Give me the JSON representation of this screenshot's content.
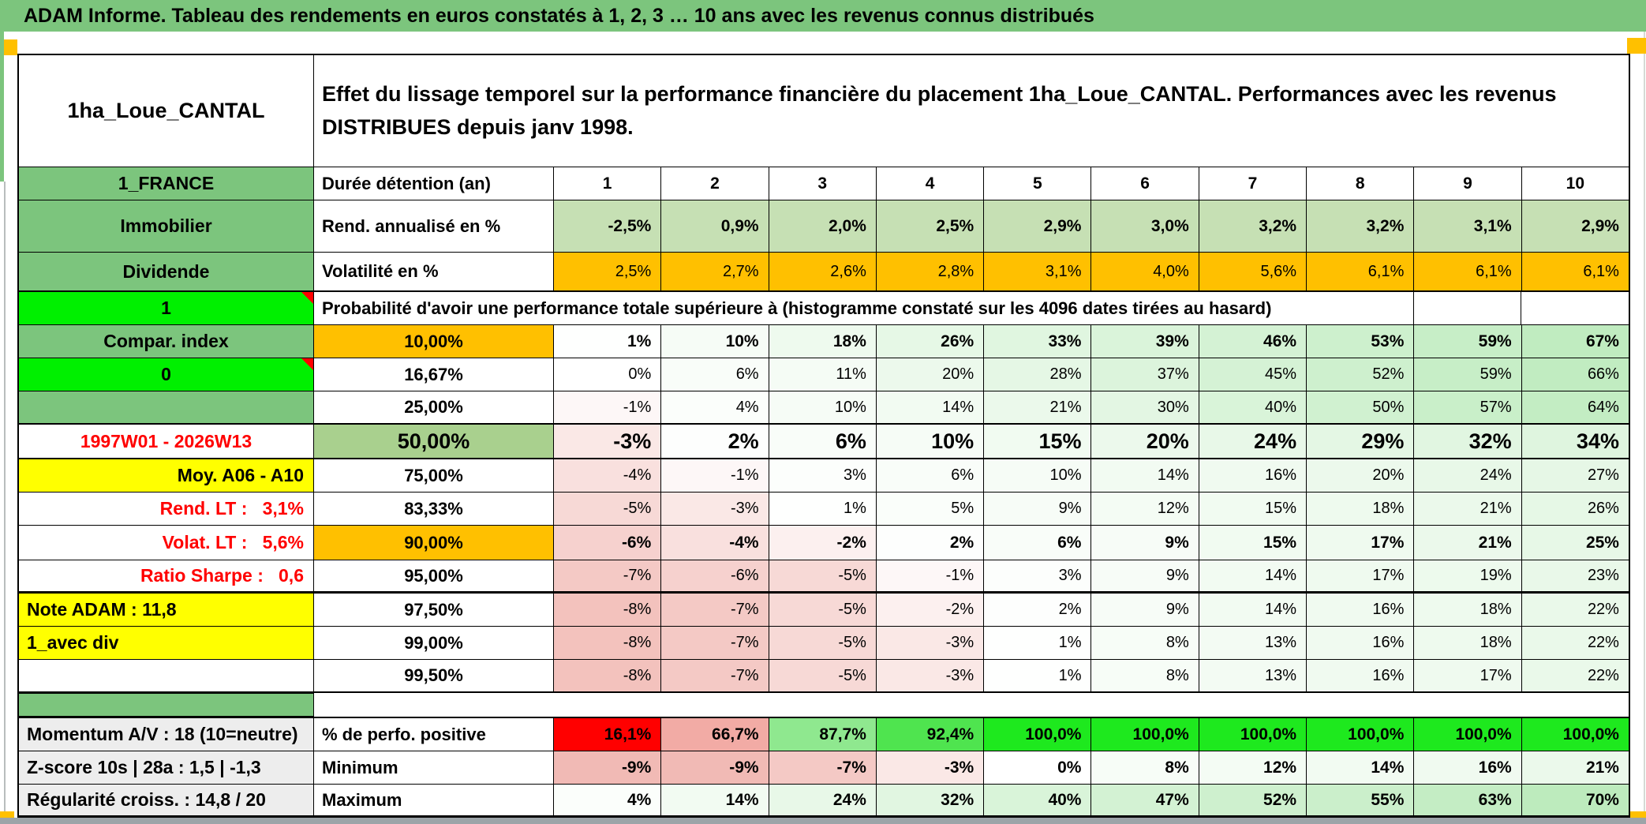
{
  "title": "ADAM Informe. Tableau des rendements en euros constatés à 1, 2, 3 … 10 ans avec les revenus connus distribués",
  "header": {
    "asset_name": "1ha_Loue_CANTAL",
    "description": "Effet du lissage temporel sur la performance financière du placement 1ha_Loue_CANTAL. Performances avec les revenus DISTRIBUES depuis janv 1998."
  },
  "colors": {
    "green": "#7CC57D",
    "midGreen": "#A9D08E",
    "lightGreen": "#C6E0B4",
    "brightGreen": "#00F000",
    "orange": "#FFC000",
    "yellow": "#FFFF00",
    "gray": "#EDEDED",
    "red": "#FF0000",
    "white": "#FFFFFF",
    "scaleNegEnd": "#F1BAB5",
    "scalePosEnd": "#BDEBBD",
    "perfoCellColors": [
      "#FF0000",
      "#F2ABA5",
      "#8FE88F",
      "#4FE44F",
      "#1EE91E",
      "#1EE91E",
      "#1EE91E",
      "#1EE91E",
      "#1EE91E",
      "#1EE91E"
    ],
    "bottomBar": "#9CA4A8",
    "titleBand": "#7CC57D"
  },
  "table": {
    "columns": [
      "1",
      "2",
      "3",
      "4",
      "5",
      "6",
      "7",
      "8",
      "9",
      "10"
    ],
    "prob_header_text": "Probabilité d'avoir une performance totale supérieure à (histogramme constaté sur les 4096 dates tirées au hasard)",
    "rows": [
      {
        "id": "duree",
        "a": {
          "text": "1_FRANCE",
          "bg": "green",
          "align": "c"
        },
        "b": {
          "text": "Durée détention (an)",
          "bg": "white",
          "align": "l"
        },
        "cells": [
          "1",
          "2",
          "3",
          "4",
          "5",
          "6",
          "7",
          "8",
          "9",
          "10"
        ],
        "mode": "plain",
        "cellAlign": "c",
        "cellBold": true
      },
      {
        "id": "rend",
        "a": {
          "text": "Immobilier",
          "bg": "green",
          "align": "c"
        },
        "b": {
          "text": "Rend. annualisé en %",
          "bg": "white",
          "align": "l"
        },
        "cells": [
          "-2,5%",
          "0,9%",
          "2,0%",
          "2,5%",
          "2,9%",
          "3,0%",
          "3,2%",
          "3,2%",
          "3,1%",
          "2,9%"
        ],
        "mode": "lightgreen",
        "cellAlign": "r",
        "cellBold": true
      },
      {
        "id": "vol",
        "a": {
          "text": "Dividende",
          "bg": "green",
          "align": "c"
        },
        "b": {
          "text": "Volatilité en %",
          "bg": "white",
          "align": "l"
        },
        "cells": [
          "2,5%",
          "2,7%",
          "2,6%",
          "2,8%",
          "3,1%",
          "4,0%",
          "5,6%",
          "6,1%",
          "6,1%",
          "6,1%"
        ],
        "mode": "orange",
        "cellAlign": "r",
        "cellBold": false
      },
      {
        "id": "probhdr",
        "type": "merged",
        "a": {
          "text": "1",
          "bg": "brightGreen",
          "align": "c",
          "marker": true
        },
        "trailing": 2
      },
      {
        "id": "p10",
        "a": {
          "text": "Compar. index",
          "bg": "green",
          "align": "c"
        },
        "b": {
          "text": "10,00%",
          "bg": "orange",
          "align": "c"
        },
        "cells": [
          "1%",
          "10%",
          "18%",
          "26%",
          "33%",
          "39%",
          "46%",
          "53%",
          "59%",
          "67%"
        ],
        "mode": "scale",
        "cellAlign": "r",
        "cellBold": true
      },
      {
        "id": "p1667",
        "a": {
          "text": "0",
          "bg": "brightGreen",
          "align": "c",
          "marker": true
        },
        "b": {
          "text": "16,67%",
          "bg": "white",
          "align": "c"
        },
        "cells": [
          "0%",
          "6%",
          "11%",
          "20%",
          "28%",
          "37%",
          "45%",
          "52%",
          "59%",
          "66%"
        ],
        "mode": "scale",
        "cellAlign": "r",
        "cellBold": false
      },
      {
        "id": "p25",
        "a": {
          "text": "",
          "bg": "green",
          "align": "c"
        },
        "b": {
          "text": "25,00%",
          "bg": "white",
          "align": "c"
        },
        "cells": [
          "-1%",
          "4%",
          "10%",
          "14%",
          "21%",
          "30%",
          "40%",
          "50%",
          "57%",
          "64%"
        ],
        "mode": "scale",
        "cellAlign": "r",
        "cellBold": false
      },
      {
        "id": "p50",
        "a": {
          "text": "1997W01 - 2026W13",
          "bg": "white",
          "fg": "red",
          "align": "c"
        },
        "b": {
          "text": "50,00%",
          "bg": "midGreen",
          "align": "c",
          "big": true
        },
        "cells": [
          "-3%",
          "2%",
          "6%",
          "10%",
          "15%",
          "20%",
          "24%",
          "29%",
          "32%",
          "34%"
        ],
        "mode": "scale",
        "cellAlign": "r",
        "cellBold": true,
        "big": true
      },
      {
        "id": "p75",
        "a": {
          "text": "Moy. A06 - A10",
          "bg": "yellow",
          "align": "r"
        },
        "b": {
          "text": "75,00%",
          "bg": "white",
          "align": "c"
        },
        "cells": [
          "-4%",
          "-1%",
          "3%",
          "6%",
          "10%",
          "14%",
          "16%",
          "20%",
          "24%",
          "27%"
        ],
        "mode": "scale",
        "cellAlign": "r",
        "cellBold": false
      },
      {
        "id": "p8333",
        "a": {
          "text": "Rend. LT :   3,1%",
          "bg": "white",
          "fg": "red",
          "align": "r"
        },
        "b": {
          "text": "83,33%",
          "bg": "white",
          "align": "c"
        },
        "cells": [
          "-5%",
          "-3%",
          "1%",
          "5%",
          "9%",
          "12%",
          "15%",
          "18%",
          "21%",
          "26%"
        ],
        "mode": "scale",
        "cellAlign": "r",
        "cellBold": false
      },
      {
        "id": "p90",
        "a": {
          "text": "Volat. LT :   5,6%",
          "bg": "white",
          "fg": "red",
          "align": "r"
        },
        "b": {
          "text": "90,00%",
          "bg": "orange",
          "align": "c"
        },
        "cells": [
          "-6%",
          "-4%",
          "-2%",
          "2%",
          "6%",
          "9%",
          "15%",
          "17%",
          "21%",
          "25%"
        ],
        "mode": "scale",
        "cellAlign": "r",
        "cellBold": true
      },
      {
        "id": "p95",
        "a": {
          "text": "Ratio Sharpe :   0,6",
          "bg": "white",
          "fg": "red",
          "align": "r"
        },
        "b": {
          "text": "95,00%",
          "bg": "white",
          "align": "c"
        },
        "cells": [
          "-7%",
          "-6%",
          "-5%",
          "-1%",
          "3%",
          "9%",
          "14%",
          "17%",
          "19%",
          "23%"
        ],
        "mode": "scale",
        "cellAlign": "r",
        "cellBold": false
      },
      {
        "id": "p975",
        "a": {
          "text": "Note ADAM : 11,8",
          "bg": "yellow",
          "align": "l"
        },
        "b": {
          "text": "97,50%",
          "bg": "white",
          "align": "c"
        },
        "cells": [
          "-8%",
          "-7%",
          "-5%",
          "-2%",
          "2%",
          "9%",
          "14%",
          "16%",
          "18%",
          "22%"
        ],
        "mode": "scale",
        "cellAlign": "r",
        "cellBold": false
      },
      {
        "id": "p99",
        "a": {
          "text": "1_avec div",
          "bg": "yellow",
          "align": "l"
        },
        "b": {
          "text": "99,00%",
          "bg": "white",
          "align": "c"
        },
        "cells": [
          "-8%",
          "-7%",
          "-5%",
          "-3%",
          "1%",
          "8%",
          "13%",
          "16%",
          "18%",
          "22%"
        ],
        "mode": "scale",
        "cellAlign": "r",
        "cellBold": false
      },
      {
        "id": "p995",
        "a": {
          "text": "",
          "bg": "white",
          "align": "c"
        },
        "b": {
          "text": "99,50%",
          "bg": "white",
          "align": "c"
        },
        "cells": [
          "-8%",
          "-7%",
          "-5%",
          "-3%",
          "1%",
          "8%",
          "13%",
          "16%",
          "17%",
          "22%"
        ],
        "mode": "scale",
        "cellAlign": "r",
        "cellBold": false
      },
      {
        "id": "spacer",
        "type": "spacer",
        "a": {
          "text": "",
          "bg": "green"
        }
      },
      {
        "id": "perfo",
        "a": {
          "text": "Momentum A/V : 18 (10=neutre)",
          "bg": "gray",
          "align": "l"
        },
        "b": {
          "text": "% de perfo. positive",
          "bg": "white",
          "align": "l"
        },
        "cells": [
          "16,1%",
          "66,7%",
          "87,7%",
          "92,4%",
          "100,0%",
          "100,0%",
          "100,0%",
          "100,0%",
          "100,0%",
          "100,0%"
        ],
        "mode": "perfo",
        "cellAlign": "r",
        "cellBold": true
      },
      {
        "id": "min",
        "a": {
          "text": "Z-score 10s | 28a : 1,5 | -1,3",
          "bg": "gray",
          "align": "l"
        },
        "b": {
          "text": "Minimum",
          "bg": "white",
          "align": "l"
        },
        "cells": [
          "-9%",
          "-9%",
          "-7%",
          "-3%",
          "0%",
          "8%",
          "12%",
          "14%",
          "16%",
          "21%"
        ],
        "mode": "scale",
        "cellAlign": "r",
        "cellBold": true
      },
      {
        "id": "max",
        "a": {
          "text": "Régularité croiss. : 14,8 / 20",
          "bg": "gray",
          "align": "l"
        },
        "b": {
          "text": "Maximum",
          "bg": "white",
          "align": "l"
        },
        "cells": [
          "4%",
          "14%",
          "24%",
          "32%",
          "40%",
          "47%",
          "52%",
          "55%",
          "63%",
          "70%"
        ],
        "mode": "scale",
        "cellAlign": "r",
        "cellBold": true
      }
    ]
  }
}
